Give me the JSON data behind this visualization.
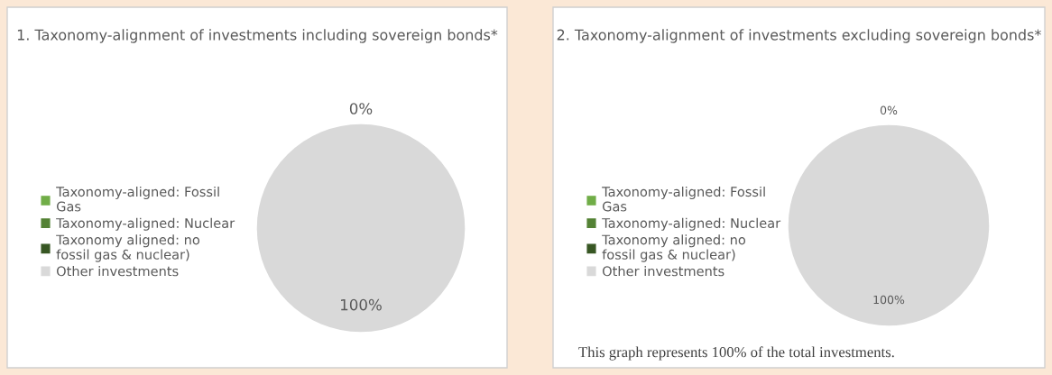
{
  "chart_data": [
    {
      "type": "pie",
      "title": "1. Taxonomy-alignment of investments including sovereign bonds*",
      "categories": [
        "Taxonomy-aligned: Fossil Gas",
        "Taxonomy-aligned: Nuclear",
        "Taxonomy aligned: no fossil gas & nuclear)",
        "Other investments"
      ],
      "values": [
        0,
        0,
        0,
        100
      ],
      "colors": [
        "#70ad47",
        "#548235",
        "#375623",
        "#d9d9d9"
      ],
      "value_labels": [
        "0%",
        null,
        null,
        "100%"
      ],
      "legend": "left"
    },
    {
      "type": "pie",
      "title": "2. Taxonomy-alignment of investments excluding sovereign bonds*",
      "categories": [
        "Taxonomy-aligned: Fossil Gas",
        "Taxonomy-aligned: Nuclear",
        "Taxonomy aligned: no fossil gas & nuclear)",
        "Other investments"
      ],
      "values": [
        0,
        0,
        0,
        100
      ],
      "colors": [
        "#70ad47",
        "#548235",
        "#375623",
        "#d9d9d9"
      ],
      "value_labels": [
        "0%",
        null,
        null,
        "100%"
      ],
      "legend": "left",
      "annotations": [
        "This graph represents 100% of the total investments."
      ]
    }
  ]
}
